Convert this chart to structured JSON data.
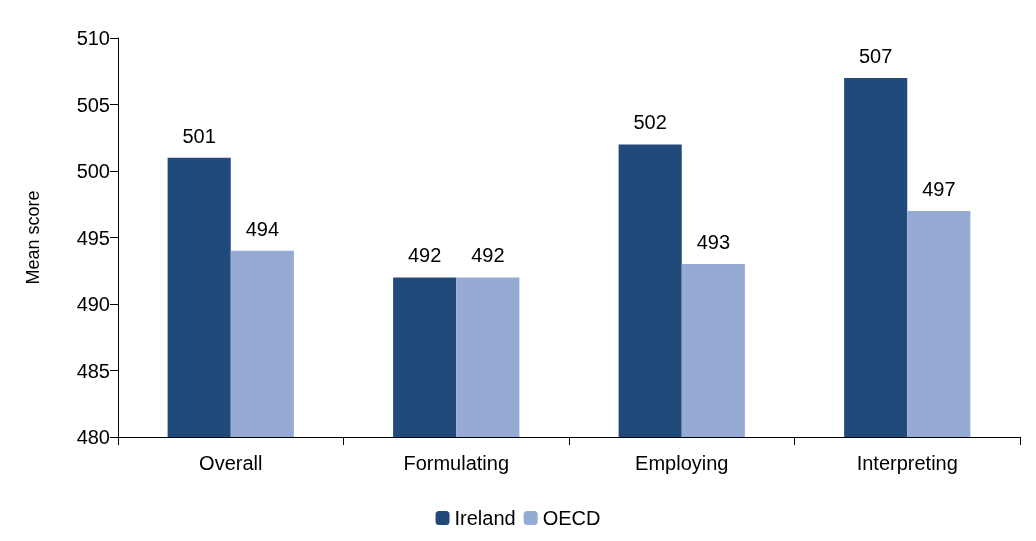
{
  "chart_data": {
    "type": "bar",
    "ylabel": "Mean score",
    "categories": [
      "Overall",
      "Formulating",
      "Employing",
      "Interpreting"
    ],
    "series": [
      {
        "name": "Ireland",
        "color": "#214a7b",
        "values": [
          501,
          492,
          502,
          507
        ]
      },
      {
        "name": "OECD",
        "color": "#95abd3",
        "values": [
          494,
          492,
          493,
          497
        ]
      }
    ],
    "ylim": [
      480,
      510
    ],
    "yticks": [
      480,
      485,
      490,
      495,
      500,
      505,
      510
    ],
    "grid": false,
    "legend": "bottom",
    "data_labels": true
  }
}
